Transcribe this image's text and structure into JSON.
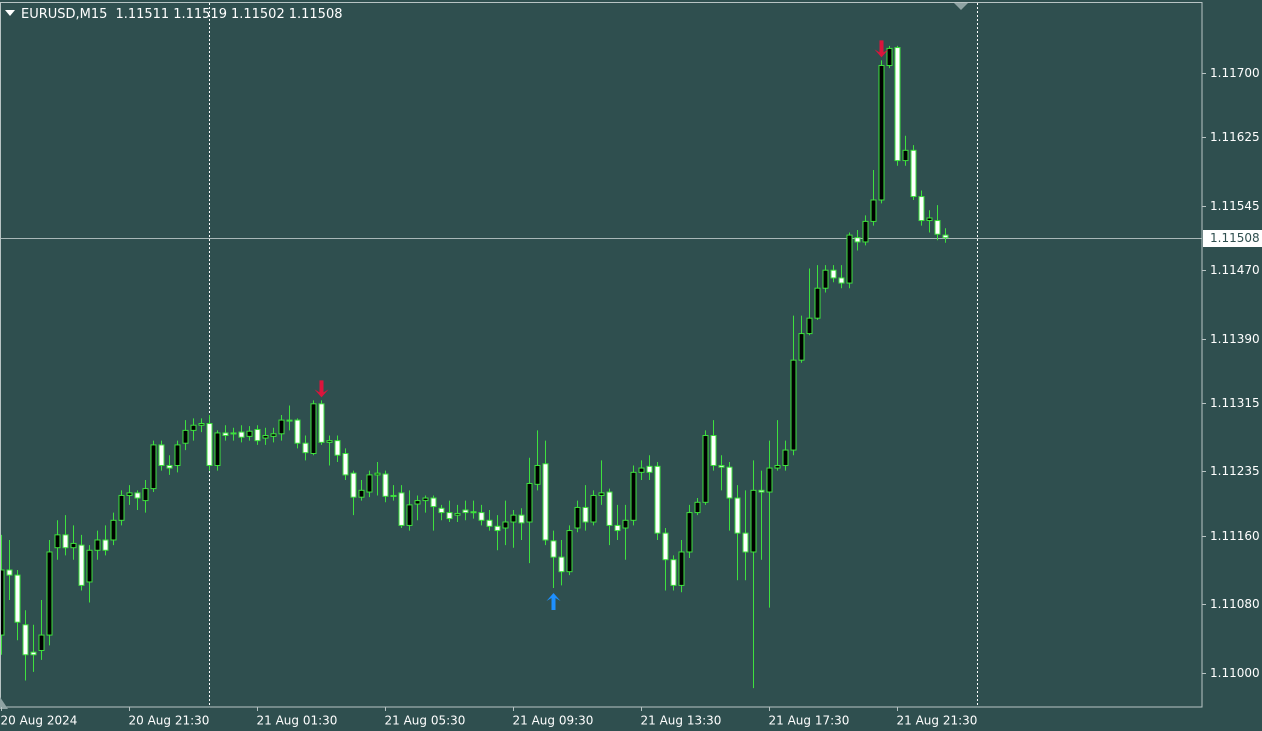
{
  "chart_data": {
    "type": "candlestick",
    "title": "EURUSD,M15",
    "xlim": [
      -0.125,
      150.125
    ],
    "ylim": [
      1.1096,
      1.11782
    ],
    "xticks": [
      {
        "value": 0,
        "label": "20 Aug 2024"
      },
      {
        "value": 16,
        "label": "20 Aug 21:30"
      },
      {
        "value": 32,
        "label": "21 Aug 01:30"
      },
      {
        "value": 48,
        "label": "21 Aug 05:30"
      },
      {
        "value": 64,
        "label": "21 Aug 09:30"
      },
      {
        "value": 80,
        "label": "21 Aug 13:30"
      },
      {
        "value": 96,
        "label": "21 Aug 17:30"
      },
      {
        "value": 112,
        "label": "21 Aug 21:30"
      }
    ],
    "yticks": [
      {
        "value": 1.117,
        "label": "1.11700"
      },
      1.11625,
      1.11545,
      {
        "value": 1.1147,
        "label": "1.11470"
      },
      {
        "value": 1.1139,
        "label": "1.11390"
      },
      1.11315,
      1.11235,
      {
        "value": 1.1116,
        "label": "1.11160"
      },
      {
        "value": 1.1108,
        "label": "1.11080"
      },
      {
        "value": 1.11,
        "label": "1.11000"
      }
    ],
    "grid": false,
    "period_separators": [
      26,
      122
    ],
    "wick_color": "#3ee03e",
    "bull_color": "#000000",
    "bear_color": "#ffffff",
    "down_arrows": [
      40,
      110
    ],
    "up_arrows": [
      69
    ],
    "down_arrow_color": "#dc143c",
    "up_arrow_color": "#1e90ff",
    "open": [
      1.11044,
      1.1112,
      1.11114,
      1.11056,
      1.11024,
      1.11026,
      1.11044,
      1.11146,
      1.11161,
      1.11146,
      1.11149,
      1.11106,
      1.11143,
      1.11155,
      1.11155,
      1.11178,
      1.11207,
      1.1121,
      1.11201,
      1.11215,
      1.11266,
      1.11242,
      1.11242,
      1.11268,
      1.11283,
      1.11289,
      1.11291,
      1.11242,
      1.1128,
      1.11279,
      1.11281,
      1.11276,
      1.11284,
      1.11274,
      1.11276,
      1.11279,
      1.11295,
      1.11295,
      1.11268,
      1.11256,
      1.11314,
      1.11269,
      1.11271,
      1.11256,
      1.11233,
      1.11205,
      1.11211,
      1.11231,
      1.11232,
      1.11206,
      1.1121,
      1.11172,
      1.11197,
      1.11201,
      1.11204,
      1.11192,
      1.11187,
      1.11184,
      1.1119,
      1.11187,
      1.11187,
      1.11178,
      1.11171,
      1.11169,
      1.11176,
      1.11184,
      1.11176,
      1.1122,
      1.11244,
      1.11154,
      1.11135,
      1.11118,
      1.11169,
      1.11193,
      1.11176,
      1.11207,
      1.11211,
      1.11172,
      1.11169,
      1.11178,
      1.11234,
      1.11241,
      1.11241,
      1.11163,
      1.11132,
      1.11102,
      1.11141,
      1.11187,
      1.11199,
      1.11277,
      1.11242,
      1.1124,
      1.11204,
      1.11163,
      1.11141,
      1.11213,
      1.11211,
      1.11239,
      1.11242,
      1.1126,
      1.11365,
      1.11396,
      1.11414,
      1.11449,
      1.1147,
      1.11461,
      1.11455,
      1.11508,
      1.11503,
      1.11527,
      1.11552,
      1.11709,
      1.1173,
      1.11598,
      1.1161,
      1.11556,
      1.11528,
      1.11528,
      1.11511
    ],
    "high": [
      1.11161,
      1.11155,
      1.1112,
      1.11073,
      1.11056,
      1.11085,
      1.11155,
      1.11178,
      1.11184,
      1.11172,
      1.11161,
      1.11149,
      1.11166,
      1.11172,
      1.11187,
      1.11213,
      1.11219,
      1.11213,
      1.11225,
      1.11271,
      1.11271,
      1.11254,
      1.11271,
      1.11295,
      1.11297,
      1.11297,
      1.11301,
      1.11283,
      1.11289,
      1.11286,
      1.11289,
      1.11288,
      1.11289,
      1.11286,
      1.11286,
      1.11301,
      1.11312,
      1.11297,
      1.11277,
      1.11318,
      1.11318,
      1.11277,
      1.11277,
      1.11262,
      1.11236,
      1.11225,
      1.11236,
      1.11246,
      1.11236,
      1.11219,
      1.11219,
      1.11213,
      1.11207,
      1.11207,
      1.11207,
      1.11196,
      1.11201,
      1.11196,
      1.11201,
      1.11201,
      1.11196,
      1.1119,
      1.11184,
      1.11201,
      1.1119,
      1.11192,
      1.11251,
      1.11283,
      1.11271,
      1.11166,
      1.11155,
      1.11172,
      1.11201,
      1.11219,
      1.11213,
      1.11248,
      1.11215,
      1.11196,
      1.11196,
      1.11242,
      1.11248,
      1.11254,
      1.11246,
      1.11169,
      1.11137,
      1.11155,
      1.11196,
      1.11204,
      1.11283,
      1.11295,
      1.11254,
      1.11246,
      1.11219,
      1.11213,
      1.11248,
      1.11236,
      1.11271,
      1.11295,
      1.11271,
      1.11417,
      1.11417,
      1.11472,
      1.11476,
      1.11476,
      1.11476,
      1.11476,
      1.11514,
      1.11517,
      1.11534,
      1.11587,
      1.11715,
      1.11732,
      1.11732,
      1.11627,
      1.11616,
      1.11563,
      1.1154,
      1.11546,
      1.11519
    ],
    "low": [
      1.11021,
      1.11085,
      1.11038,
      1.10991,
      1.11001,
      1.11015,
      1.11032,
      1.11132,
      1.11137,
      1.11132,
      1.11096,
      1.11082,
      1.11132,
      1.11137,
      1.11149,
      1.11172,
      1.11196,
      1.1119,
      1.11187,
      1.11211,
      1.11236,
      1.11231,
      1.11234,
      1.1126,
      1.11271,
      1.11281,
      1.11236,
      1.11236,
      1.11271,
      1.11271,
      1.11269,
      1.11271,
      1.11266,
      1.11266,
      1.11269,
      1.11271,
      1.11283,
      1.11262,
      1.11248,
      1.11254,
      1.11266,
      1.11242,
      1.11246,
      1.11225,
      1.11184,
      1.11201,
      1.11205,
      1.11207,
      1.11199,
      1.11201,
      1.11169,
      1.11166,
      1.11178,
      1.11187,
      1.11166,
      1.11178,
      1.11176,
      1.11176,
      1.11178,
      1.1118,
      1.11172,
      1.11166,
      1.11143,
      1.11149,
      1.11146,
      1.11155,
      1.11128,
      1.11213,
      1.11149,
      1.11099,
      1.11102,
      1.11114,
      1.11164,
      1.11166,
      1.11172,
      1.11196,
      1.11149,
      1.11155,
      1.11132,
      1.11172,
      1.11225,
      1.11225,
      1.11155,
      1.11096,
      1.11096,
      1.11094,
      1.11134,
      1.11184,
      1.11196,
      1.11236,
      1.11213,
      1.11166,
      1.11108,
      1.11108,
      1.10982,
      1.11132,
      1.11076,
      1.11236,
      1.11236,
      1.11254,
      1.11362,
      1.11394,
      1.11412,
      1.11444,
      1.11456,
      1.11449,
      1.11449,
      1.11493,
      1.11499,
      1.11522,
      1.11548,
      1.11706,
      1.11592,
      1.11592,
      1.11552,
      1.11522,
      1.11514,
      1.11505,
      1.11502
    ],
    "close": [
      1.1112,
      1.11114,
      1.11059,
      1.11021,
      1.11021,
      1.11044,
      1.11141,
      1.11161,
      1.11146,
      1.11151,
      1.11102,
      1.11143,
      1.11155,
      1.11143,
      1.11178,
      1.11207,
      1.1121,
      1.11204,
      1.11215,
      1.11266,
      1.11242,
      1.11239,
      1.11266,
      1.11283,
      1.11289,
      1.11291,
      1.11242,
      1.1128,
      1.11277,
      1.1128,
      1.11275,
      1.11282,
      1.11271,
      1.11277,
      1.11279,
      1.11295,
      1.11294,
      1.11268,
      1.11257,
      1.11314,
      1.11269,
      1.11271,
      1.11254,
      1.11231,
      1.11205,
      1.11213,
      1.11231,
      1.11233,
      1.11206,
      1.11207,
      1.11172,
      1.11196,
      1.11201,
      1.11204,
      1.11194,
      1.11187,
      1.1118,
      1.11186,
      1.11187,
      1.11188,
      1.11178,
      1.11171,
      1.11166,
      1.11176,
      1.11184,
      1.11175,
      1.11221,
      1.11242,
      1.11155,
      1.11135,
      1.11118,
      1.11166,
      1.11193,
      1.11176,
      1.11207,
      1.1121,
      1.11172,
      1.11166,
      1.11178,
      1.11234,
      1.11239,
      1.11234,
      1.11163,
      1.11132,
      1.11102,
      1.11141,
      1.11187,
      1.11199,
      1.11277,
      1.11242,
      1.1124,
      1.11204,
      1.11163,
      1.11141,
      1.11213,
      1.11211,
      1.11239,
      1.11242,
      1.1126,
      1.11365,
      1.11396,
      1.11414,
      1.11449,
      1.1147,
      1.11461,
      1.11455,
      1.11511,
      1.11503,
      1.11527,
      1.11552,
      1.11709,
      1.11729,
      1.11598,
      1.1161,
      1.11556,
      1.11528,
      1.11531,
      1.11512,
      1.11508
    ]
  }
}
